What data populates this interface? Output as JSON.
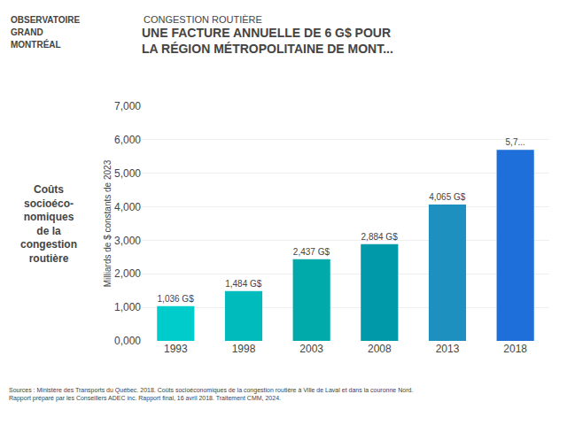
{
  "chart_data": {
    "type": "bar",
    "title": "UNE FACTURE ANNUELLE DE 6 G$ POUR\nLA RÉGION MÉTROPOLITAINE DE MONT...",
    "subtitle": "CONGESTION ROUTIÈRE",
    "ylabel": "Milliards de $ constants de 2023",
    "categories": [
      "1993",
      "1998",
      "2003",
      "2008",
      "2013",
      "2018"
    ],
    "values": [
      1036,
      1484,
      2437,
      2884,
      4065,
      5700
    ],
    "value_labels": [
      "1,036 G$",
      "1,484 G$",
      "2,437 G$",
      "2,884 G$",
      "4,065 G$",
      "5,7..."
    ],
    "data_labels": true,
    "colors": [
      "#00CCCC",
      "#00BBBB",
      "#00AAAA",
      "#0099AA",
      "#1E90C0",
      "#1E6FD9"
    ],
    "ylim": [
      0,
      7000
    ],
    "yticks": [
      {
        "value": 0,
        "label": "0,000"
      },
      {
        "value": 1000,
        "label": "1,000"
      },
      {
        "value": 2000,
        "label": "2,000"
      },
      {
        "value": 3000,
        "label": "3,000"
      },
      {
        "value": 4000,
        "label": "4,000"
      },
      {
        "value": 5000,
        "label": "5,000"
      },
      {
        "value": 6000,
        "label": "6,000"
      },
      {
        "value": 7000,
        "label": "7,000"
      }
    ],
    "grid": true,
    "annotations": [
      "OBSERVATOIRE",
      "GRAND",
      "MONTRÉAL",
      "Coûts\nsocioéco-\nnomiques\nde la\ncongestion\nroutière",
      "Sources : Ministère des Transports du Québec. 2018. Coûts socioéconomiques de la congestion routière à Ville de Laval et dans la couronne Nord.\nRapport préparé par les Conseillers ADEC inc. Rapport final, 16 avril 2018. Traitement CMM, 2024."
    ]
  }
}
